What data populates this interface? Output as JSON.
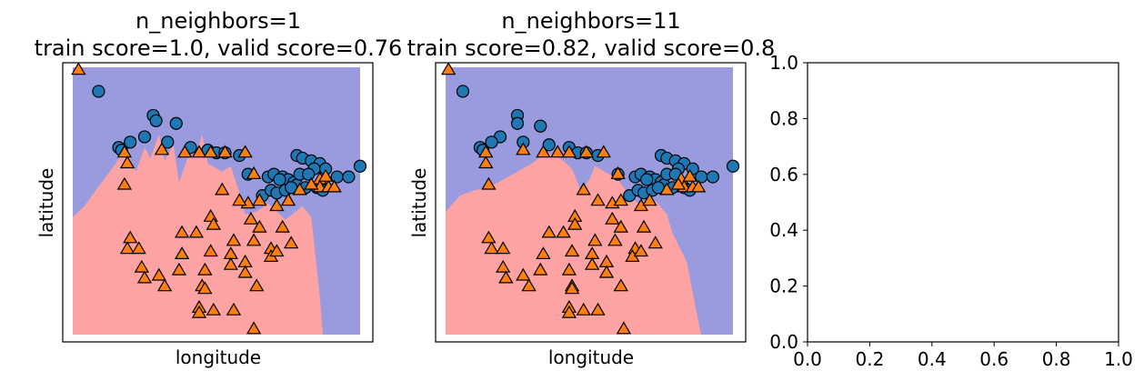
{
  "colors": {
    "class0_region": "#9a9ade",
    "class1_region": "#fea3a3",
    "class0_marker": "#1f77b4",
    "class1_marker": "#ff7f0e",
    "marker_edge": "#000000"
  },
  "chart_data": [
    {
      "type": "scatter",
      "title_line1": "n_neighbors=1",
      "title_line2": "train score=1.0, valid score=0.76",
      "xlabel": "longitude",
      "ylabel": "latitude",
      "xticks": "none",
      "yticks": "none",
      "grid": false,
      "decision_regions": true,
      "series": [
        {
          "class": 0,
          "marker": "circle",
          "points": [
            [
              0.09,
              0.91
            ],
            [
              0.28,
              0.82
            ],
            [
              0.29,
              0.8
            ],
            [
              0.36,
              0.79
            ],
            [
              0.25,
              0.74
            ],
            [
              0.2,
              0.72
            ],
            [
              0.33,
              0.72
            ],
            [
              0.41,
              0.7
            ],
            [
              0.16,
              0.7
            ],
            [
              0.17,
              0.69
            ],
            [
              0.47,
              0.69
            ],
            [
              0.5,
              0.68
            ],
            [
              0.53,
              0.68
            ],
            [
              0.58,
              0.67
            ],
            [
              0.78,
              0.67
            ],
            [
              0.8,
              0.66
            ],
            [
              0.83,
              0.65
            ],
            [
              0.86,
              0.64
            ],
            [
              0.84,
              0.62
            ],
            [
              1.0,
              0.63
            ],
            [
              0.61,
              0.6
            ],
            [
              0.68,
              0.59
            ],
            [
              0.7,
              0.6
            ],
            [
              0.73,
              0.59
            ],
            [
              0.75,
              0.58
            ],
            [
              0.77,
              0.57
            ],
            [
              0.78,
              0.56
            ],
            [
              0.81,
              0.55
            ],
            [
              0.85,
              0.55
            ],
            [
              0.87,
              0.54
            ],
            [
              0.92,
              0.59
            ],
            [
              0.96,
              0.59
            ],
            [
              0.79,
              0.6
            ],
            [
              0.82,
              0.6
            ],
            [
              0.66,
              0.52
            ],
            [
              0.69,
              0.54
            ],
            [
              0.71,
              0.53
            ],
            [
              0.74,
              0.54
            ],
            [
              0.76,
              0.55
            ],
            [
              0.72,
              0.58
            ],
            [
              0.88,
              0.62
            ]
          ]
        },
        {
          "class": 1,
          "marker": "triangle",
          "points": [
            [
              0.02,
              0.99
            ],
            [
              0.18,
              0.68
            ],
            [
              0.19,
              0.64
            ],
            [
              0.18,
              0.56
            ],
            [
              0.31,
              0.69
            ],
            [
              0.39,
              0.68
            ],
            [
              0.44,
              0.68
            ],
            [
              0.48,
              0.68
            ],
            [
              0.53,
              0.68
            ],
            [
              0.6,
              0.68
            ],
            [
              0.63,
              0.6
            ],
            [
              0.61,
              0.49
            ],
            [
              0.86,
              0.58
            ],
            [
              0.86,
              0.55
            ],
            [
              0.89,
              0.55
            ],
            [
              0.52,
              0.54
            ],
            [
              0.58,
              0.5
            ],
            [
              0.65,
              0.5
            ],
            [
              0.71,
              0.48
            ],
            [
              0.75,
              0.5
            ],
            [
              0.79,
              0.54
            ],
            [
              0.83,
              0.56
            ],
            [
              0.88,
              0.59
            ],
            [
              0.91,
              0.55
            ],
            [
              0.48,
              0.44
            ],
            [
              0.49,
              0.41
            ],
            [
              0.62,
              0.43
            ],
            [
              0.65,
              0.4
            ],
            [
              0.73,
              0.4
            ],
            [
              0.38,
              0.38
            ],
            [
              0.43,
              0.38
            ],
            [
              0.56,
              0.35
            ],
            [
              0.63,
              0.35
            ],
            [
              0.69,
              0.32
            ],
            [
              0.2,
              0.36
            ],
            [
              0.19,
              0.32
            ],
            [
              0.23,
              0.32
            ],
            [
              0.38,
              0.3
            ],
            [
              0.48,
              0.31
            ],
            [
              0.55,
              0.3
            ],
            [
              0.6,
              0.27
            ],
            [
              0.69,
              0.29
            ],
            [
              0.71,
              0.31
            ],
            [
              0.76,
              0.34
            ],
            [
              0.24,
              0.25
            ],
            [
              0.25,
              0.21
            ],
            [
              0.3,
              0.22
            ],
            [
              0.37,
              0.24
            ],
            [
              0.46,
              0.24
            ],
            [
              0.55,
              0.26
            ],
            [
              0.6,
              0.23
            ],
            [
              0.32,
              0.18
            ],
            [
              0.45,
              0.18
            ],
            [
              0.46,
              0.17
            ],
            [
              0.64,
              0.18
            ],
            [
              0.44,
              0.1
            ],
            [
              0.44,
              0.08
            ],
            [
              0.49,
              0.09
            ],
            [
              0.56,
              0.09
            ],
            [
              0.63,
              0.02
            ]
          ]
        }
      ]
    },
    {
      "type": "scatter",
      "title_line1": "n_neighbors=11",
      "title_line2": "train score=0.82, valid score=0.8",
      "xlabel": "longitude",
      "ylabel": "latitude",
      "xticks": "none",
      "yticks": "none",
      "grid": false,
      "decision_regions": true,
      "series": [
        {
          "class": 0,
          "marker": "circle",
          "points": [
            [
              0.06,
              0.91
            ],
            [
              0.25,
              0.82
            ],
            [
              0.25,
              0.79
            ],
            [
              0.33,
              0.78
            ],
            [
              0.19,
              0.74
            ],
            [
              0.16,
              0.72
            ],
            [
              0.27,
              0.72
            ],
            [
              0.36,
              0.71
            ],
            [
              0.12,
              0.7
            ],
            [
              0.13,
              0.69
            ],
            [
              0.43,
              0.7
            ],
            [
              0.46,
              0.68
            ],
            [
              0.49,
              0.68
            ],
            [
              0.53,
              0.67
            ],
            [
              0.75,
              0.67
            ],
            [
              0.77,
              0.66
            ],
            [
              0.8,
              0.65
            ],
            [
              0.83,
              0.64
            ],
            [
              0.81,
              0.62
            ],
            [
              1.0,
              0.63
            ],
            [
              0.6,
              0.6
            ],
            [
              0.66,
              0.59
            ],
            [
              0.68,
              0.6
            ],
            [
              0.71,
              0.59
            ],
            [
              0.73,
              0.58
            ],
            [
              0.75,
              0.57
            ],
            [
              0.76,
              0.56
            ],
            [
              0.79,
              0.55
            ],
            [
              0.83,
              0.55
            ],
            [
              0.85,
              0.54
            ],
            [
              0.89,
              0.59
            ],
            [
              0.93,
              0.59
            ],
            [
              0.77,
              0.6
            ],
            [
              0.8,
              0.6
            ],
            [
              0.64,
              0.52
            ],
            [
              0.67,
              0.54
            ],
            [
              0.69,
              0.53
            ],
            [
              0.72,
              0.54
            ],
            [
              0.74,
              0.55
            ],
            [
              0.7,
              0.58
            ],
            [
              0.86,
              0.62
            ]
          ]
        },
        {
          "class": 1,
          "marker": "triangle",
          "points": [
            [
              0.01,
              0.99
            ],
            [
              0.14,
              0.68
            ],
            [
              0.14,
              0.64
            ],
            [
              0.15,
              0.56
            ],
            [
              0.27,
              0.69
            ],
            [
              0.34,
              0.68
            ],
            [
              0.39,
              0.68
            ],
            [
              0.43,
              0.68
            ],
            [
              0.49,
              0.68
            ],
            [
              0.55,
              0.68
            ],
            [
              0.6,
              0.6
            ],
            [
              0.58,
              0.49
            ],
            [
              0.82,
              0.58
            ],
            [
              0.83,
              0.55
            ],
            [
              0.86,
              0.55
            ],
            [
              0.48,
              0.54
            ],
            [
              0.53,
              0.5
            ],
            [
              0.61,
              0.5
            ],
            [
              0.68,
              0.48
            ],
            [
              0.71,
              0.5
            ],
            [
              0.77,
              0.54
            ],
            [
              0.81,
              0.56
            ],
            [
              0.85,
              0.59
            ],
            [
              0.88,
              0.55
            ],
            [
              0.45,
              0.44
            ],
            [
              0.45,
              0.41
            ],
            [
              0.58,
              0.43
            ],
            [
              0.61,
              0.4
            ],
            [
              0.69,
              0.4
            ],
            [
              0.36,
              0.38
            ],
            [
              0.41,
              0.38
            ],
            [
              0.52,
              0.35
            ],
            [
              0.59,
              0.35
            ],
            [
              0.66,
              0.32
            ],
            [
              0.15,
              0.36
            ],
            [
              0.16,
              0.32
            ],
            [
              0.2,
              0.32
            ],
            [
              0.34,
              0.3
            ],
            [
              0.44,
              0.31
            ],
            [
              0.51,
              0.3
            ],
            [
              0.56,
              0.27
            ],
            [
              0.65,
              0.29
            ],
            [
              0.68,
              0.31
            ],
            [
              0.73,
              0.34
            ],
            [
              0.2,
              0.25
            ],
            [
              0.21,
              0.21
            ],
            [
              0.27,
              0.22
            ],
            [
              0.33,
              0.24
            ],
            [
              0.43,
              0.24
            ],
            [
              0.51,
              0.26
            ],
            [
              0.56,
              0.23
            ],
            [
              0.29,
              0.18
            ],
            [
              0.44,
              0.18
            ],
            [
              0.44,
              0.17
            ],
            [
              0.61,
              0.18
            ],
            [
              0.43,
              0.1
            ],
            [
              0.43,
              0.08
            ],
            [
              0.48,
              0.09
            ],
            [
              0.53,
              0.09
            ],
            [
              0.62,
              0.02
            ]
          ]
        }
      ]
    },
    {
      "type": "scatter",
      "empty": true,
      "xlim": [
        0.0,
        1.0
      ],
      "ylim": [
        0.0,
        1.0
      ],
      "xtick_labels": [
        "0.0",
        "0.2",
        "0.4",
        "0.6",
        "0.8",
        "1.0"
      ],
      "ytick_labels": [
        "0.0",
        "0.2",
        "0.4",
        "0.6",
        "0.8",
        "1.0"
      ],
      "grid": false
    }
  ]
}
